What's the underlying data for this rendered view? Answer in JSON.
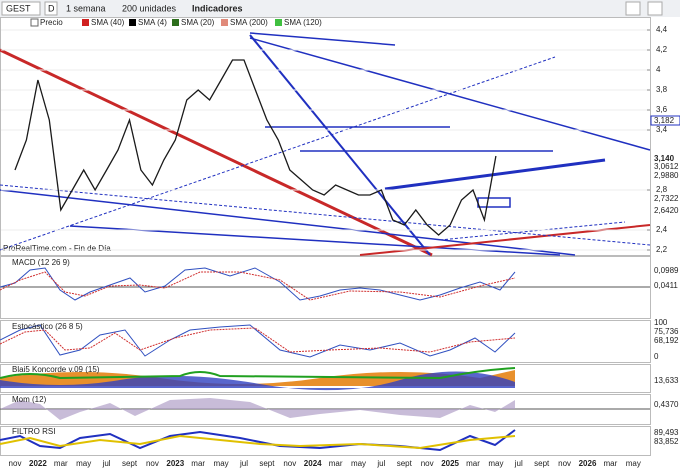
{
  "toolbar": {
    "symbol": "GEST",
    "mode": "D",
    "period": "1 semana",
    "units": "200 unidades",
    "indicators": "Indicadores"
  },
  "legend": [
    "Precio",
    "SMA (40)",
    "SMA (4)",
    "SMA (20)",
    "SMA (200)",
    "SMA (120)"
  ],
  "chart_data": {
    "type": "line",
    "source": "ProRealTime.com - Fin de Día",
    "series": [
      {
        "name": "Precio",
        "color": "#1a1a1a",
        "values": [
          3.0,
          3.3,
          3.9,
          3.5,
          2.6,
          2.8,
          3.0,
          2.8,
          3.0,
          3.2,
          3.5,
          3.0,
          2.85,
          3.1,
          3.3,
          3.7,
          3.8,
          3.7,
          3.9,
          4.1,
          4.1,
          3.8,
          3.5,
          3.3,
          3.0,
          2.9,
          2.8,
          2.75,
          2.85,
          2.8,
          2.75,
          2.75,
          2.8,
          2.5,
          2.45,
          2.6,
          2.45,
          2.35,
          2.45,
          2.7,
          2.8,
          2.5,
          3.14
        ]
      }
    ],
    "ylim": [
      2.15,
      4.52
    ],
    "yticks": [
      {
        "value": 4.4,
        "label": "4,4"
      },
      {
        "value": 4.2,
        "label": "4,2"
      },
      4,
      {
        "value": 3.8,
        "label": "3,8"
      },
      {
        "value": 3.6,
        "label": "3,6"
      },
      {
        "value": 3.4,
        "label": "3,4"
      },
      {
        "value": 2.8,
        "label": "2,8"
      },
      {
        "value": 2.4,
        "label": "2,4"
      },
      {
        "value": 2.2,
        "label": "2,2"
      }
    ],
    "x_labels": [
      "nov",
      "2022",
      "mar",
      "may",
      "jul",
      "sept",
      "nov",
      "2023",
      "mar",
      "may",
      "jul",
      "sept",
      "nov",
      "2024",
      "mar",
      "may",
      "jul",
      "sept",
      "nov",
      "2025",
      "mar",
      "may",
      "jul",
      "sept",
      "nov",
      "2026",
      "mar",
      "may"
    ]
  },
  "price_labels": [
    "3,182",
    "3,140",
    "3,0612",
    "2,9880",
    "2,7322",
    "2,6420"
  ],
  "panels": [
    {
      "title": "MACD (12 26 9)",
      "labels": [
        "0,0989",
        "0,0411"
      ]
    },
    {
      "title": "Estocástico (26 8 5)",
      "labels": [
        "100",
        "75,736",
        "68,192",
        "0"
      ]
    },
    {
      "title": "Blai5 Koncorde v.09 (15)",
      "labels": [
        "13,633"
      ]
    },
    {
      "title": "Mom (12)",
      "labels": [
        "0,4370"
      ]
    },
    {
      "title": "FILTRO RSI",
      "labels": [
        "89,493",
        "83,852"
      ]
    }
  ]
}
